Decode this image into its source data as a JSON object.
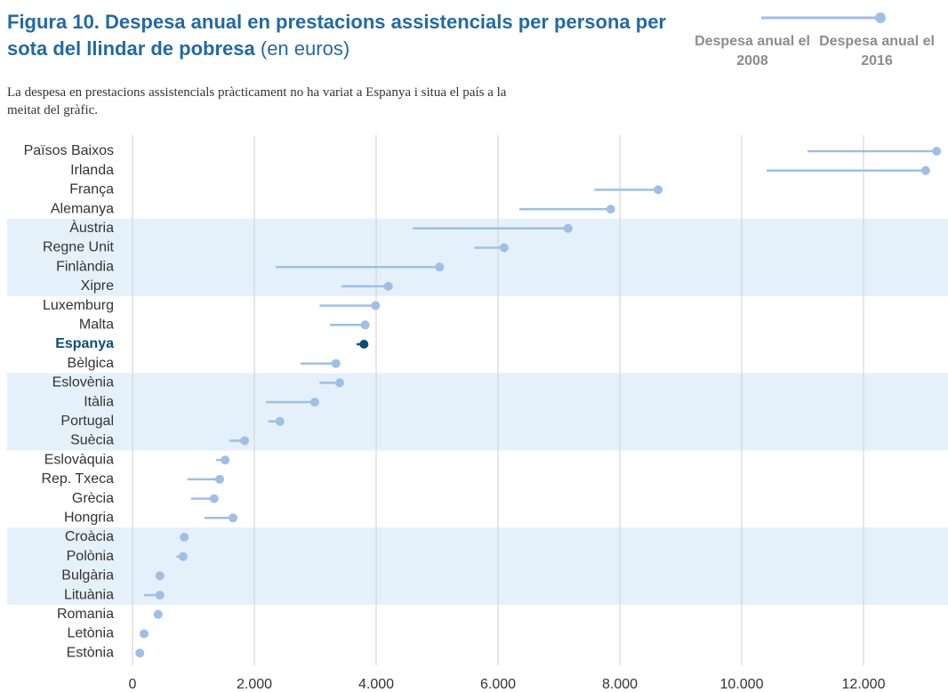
{
  "chart_data": {
    "type": "dumbbell",
    "title": "Figura 10. Despesa anual en prestacions assistencials per persona per sota del llindar de pobresa",
    "title_suffix": "(en euros)",
    "subtitle": "La despesa en prestacions assistencials pràcticament no ha variat a Espanya i situa el país a la meitat del gràfic.",
    "categories": [
      "Països Baixos",
      "Irlanda",
      "França",
      "Alemanya",
      "Àustria",
      "Regne Unit",
      "Finlàndia",
      "Xipre",
      "Luxemburg",
      "Malta",
      "Espanya",
      "Bèlgica",
      "Eslovènia",
      "Itàlia",
      "Portugal",
      "Suècia",
      "Eslovàquia",
      "Rep. Txeca",
      "Grècia",
      "Hongria",
      "Croàcia",
      "Polònia",
      "Bulgària",
      "Lituània",
      "Romania",
      "Letònia",
      "Estònia"
    ],
    "series": [
      {
        "name": "Despesa anual el 2008",
        "color": "#9fbfe4",
        "values": [
          11080,
          10410,
          7580,
          6350,
          4600,
          5610,
          2350,
          3430,
          3070,
          3240,
          3680,
          2760,
          3070,
          2190,
          2230,
          1590,
          1370,
          900,
          960,
          1180,
          790,
          720,
          390,
          190,
          410,
          160,
          90
        ]
      },
      {
        "name": "Despesa anual el 2016",
        "color": "#9fbfe4",
        "values": [
          13200,
          13020,
          8630,
          7850,
          7150,
          6100,
          5040,
          4200,
          3990,
          3820,
          3800,
          3340,
          3400,
          2990,
          2420,
          1840,
          1520,
          1430,
          1340,
          1650,
          850,
          830,
          450,
          450,
          420,
          190,
          120
        ]
      }
    ],
    "highlight": {
      "index": 10,
      "color": "#0b4e7a"
    },
    "xlim": [
      0,
      13400
    ],
    "xticks": [
      0,
      {
        "value": 2000,
        "label": "2.000"
      },
      {
        "value": 4000,
        "label": "4.000"
      },
      {
        "value": 6000,
        "label": "6.000"
      },
      {
        "value": 8000,
        "label": "8.000"
      },
      {
        "value": 10000,
        "label": "10.000"
      },
      {
        "value": 12000,
        "label": "12.000"
      }
    ],
    "grid": true
  }
}
